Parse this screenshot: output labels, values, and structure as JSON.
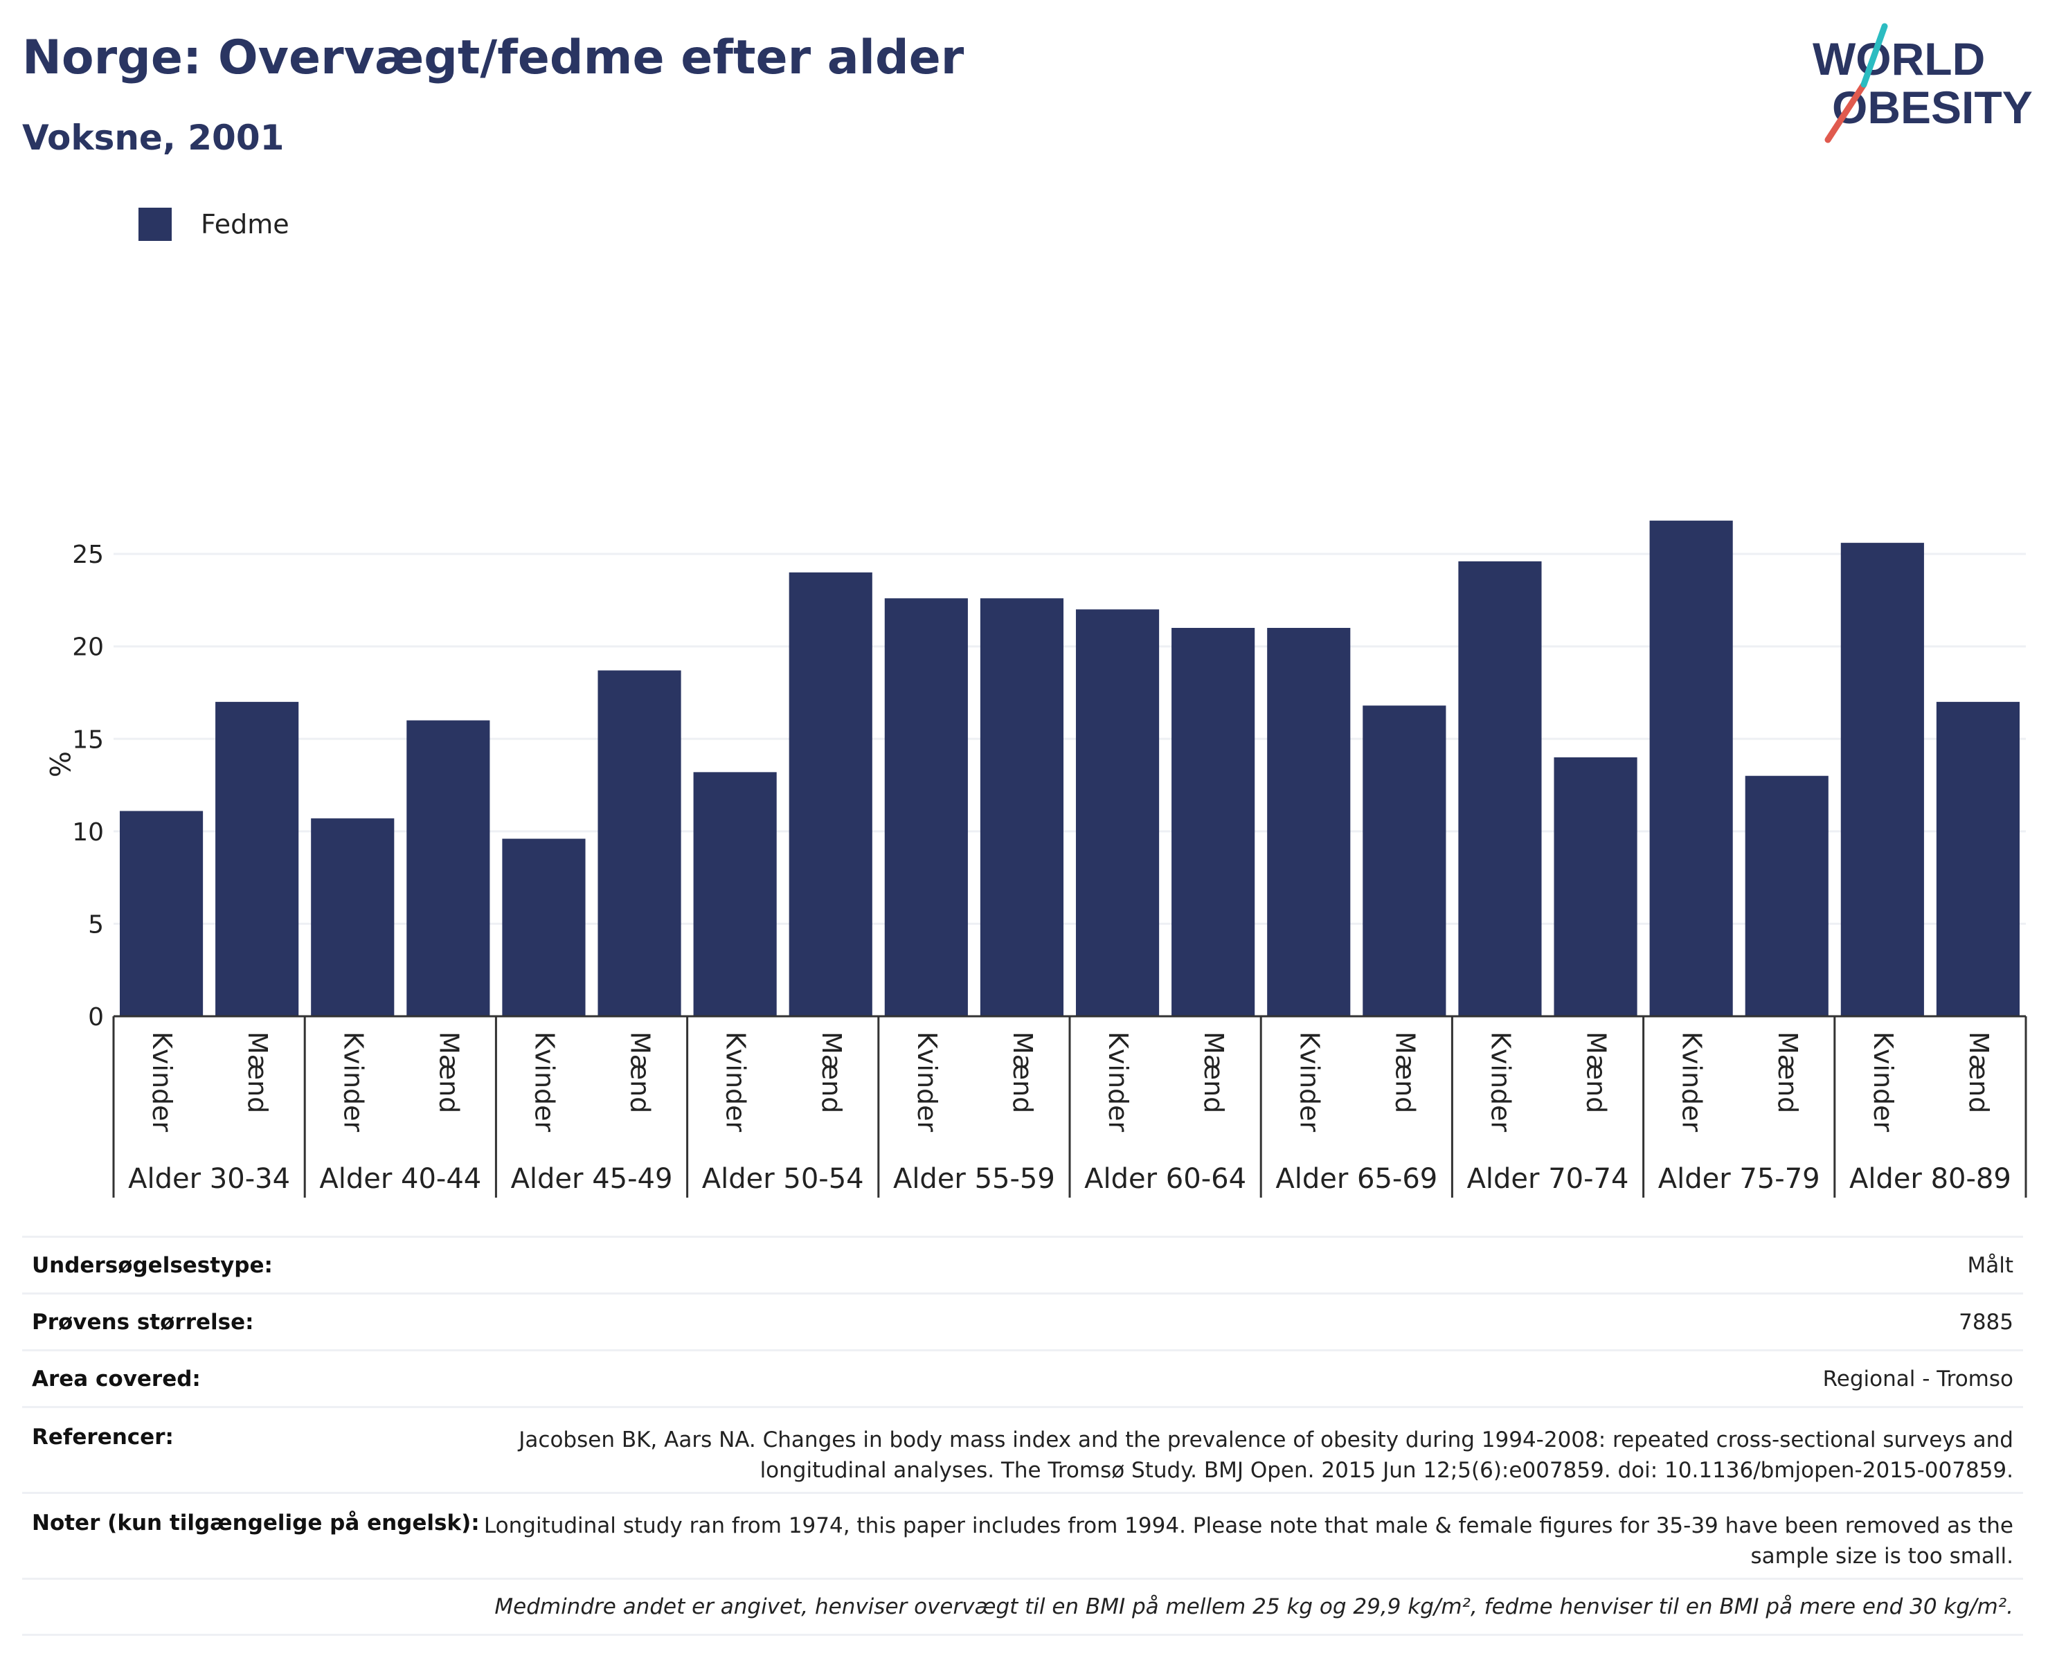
{
  "header": {
    "title": "Norge: Overvægt/fedme efter alder",
    "subtitle": "Voksne, 2001"
  },
  "logo": {
    "line1": "WORLD",
    "line2": "OBESITY",
    "icon": "world-obesity-logo",
    "slash_colors": [
      "#e05a4e",
      "#2bbcc1"
    ]
  },
  "colors": {
    "bar": "#2a3562",
    "grid": "#eef0f4",
    "axis": "#333333"
  },
  "chart_data": {
    "type": "bar",
    "ylabel": "%",
    "ylim": [
      0,
      28
    ],
    "yticks": [
      0,
      5,
      10,
      15,
      20,
      25
    ],
    "grid": "horizontal",
    "legend_position": "top-left",
    "series": [
      {
        "name": "Fedme",
        "color": "#2a3562",
        "values": [
          11.1,
          17.0,
          10.7,
          16.0,
          9.6,
          18.7,
          13.2,
          24.0,
          22.6,
          22.6,
          22.0,
          21.0,
          21.0,
          16.8,
          24.6,
          14.0,
          26.8,
          13.0,
          25.6,
          17.0
        ]
      }
    ],
    "groups": [
      {
        "label": "Alder 30-34",
        "categories": [
          "Kvinder",
          "Mænd"
        ]
      },
      {
        "label": "Alder 40-44",
        "categories": [
          "Kvinder",
          "Mænd"
        ]
      },
      {
        "label": "Alder 45-49",
        "categories": [
          "Kvinder",
          "Mænd"
        ]
      },
      {
        "label": "Alder 50-54",
        "categories": [
          "Kvinder",
          "Mænd"
        ]
      },
      {
        "label": "Alder 55-59",
        "categories": [
          "Kvinder",
          "Mænd"
        ]
      },
      {
        "label": "Alder 60-64",
        "categories": [
          "Kvinder",
          "Mænd"
        ]
      },
      {
        "label": "Alder 65-69",
        "categories": [
          "Kvinder",
          "Mænd"
        ]
      },
      {
        "label": "Alder 70-74",
        "categories": [
          "Kvinder",
          "Mænd"
        ]
      },
      {
        "label": "Alder 75-79",
        "categories": [
          "Kvinder",
          "Mænd"
        ]
      },
      {
        "label": "Alder 80-89",
        "categories": [
          "Kvinder",
          "Mænd"
        ]
      }
    ]
  },
  "info": {
    "rows": [
      {
        "label": "Undersøgelsestype:",
        "value": "Målt"
      },
      {
        "label": "Prøvens størrelse:",
        "value": "7885"
      },
      {
        "label": "Area covered:",
        "value": "Regional - Tromso"
      },
      {
        "label": "Referencer:",
        "value": "Jacobsen BK, Aars NA. Changes in body mass index and the prevalence of obesity during 1994-2008: repeated cross-sectional surveys and longitudinal analyses. The Tromsø Study. BMJ Open. 2015 Jun 12;5(6):e007859. doi: 10.1136/bmjopen-2015-007859."
      },
      {
        "label": "Noter (kun tilgængelige på engelsk):",
        "value": "Longitudinal study ran from 1974, this paper includes from 1994. Please note that male & female figures for 35-39 have been removed as the sample size is too small."
      }
    ],
    "footnote": "Medmindre andet er angivet, henviser overvægt til en BMI på mellem 25 kg og 29,9 kg/m², fedme henviser til en BMI på mere end 30 kg/m²."
  }
}
